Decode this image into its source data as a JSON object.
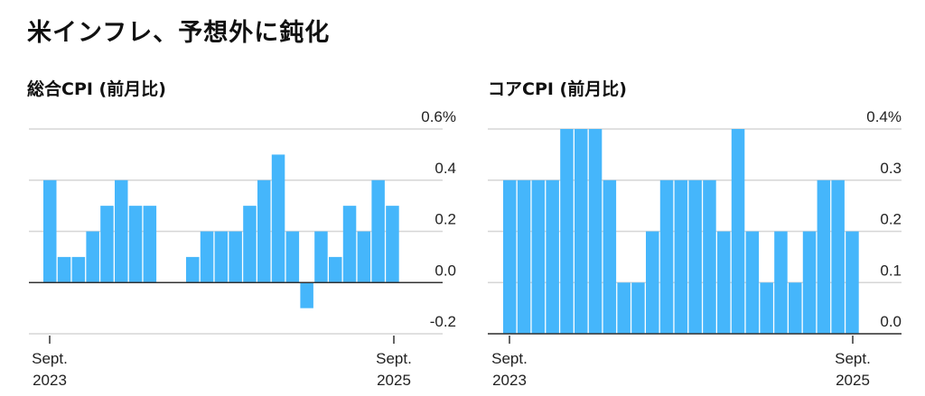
{
  "title": "米インフレ、予想外に鈍化",
  "bar_color": "#45b6fb",
  "chart_data": [
    {
      "type": "bar",
      "title": "総合CPI (前月比)",
      "categories_start": "Sept. 2023",
      "categories_end": "Sept. 2025",
      "x_tick_labels": [
        {
          "line1": "Sept.",
          "line2": "2023"
        },
        {
          "line1": "Sept.",
          "line2": "2025"
        }
      ],
      "values": [
        0.4,
        0.1,
        0.1,
        0.2,
        0.3,
        0.4,
        0.3,
        0.3,
        0.0,
        0.0,
        0.1,
        0.2,
        0.2,
        0.2,
        0.3,
        0.4,
        0.5,
        0.2,
        -0.1,
        0.2,
        0.1,
        0.3,
        0.2,
        0.4,
        0.3
      ],
      "ylim": [
        -0.2,
        0.6
      ],
      "y_ticks": [
        0.6,
        0.4,
        0.2,
        0.0,
        -0.2
      ],
      "y_tick_labels": [
        "0.6%",
        "0.4",
        "0.2",
        "0.0",
        "-0.2"
      ],
      "grid": true,
      "y_axis_side": "right"
    },
    {
      "type": "bar",
      "title": "コアCPI (前月比)",
      "categories_start": "Sept. 2023",
      "categories_end": "Sept. 2025",
      "x_tick_labels": [
        {
          "line1": "Sept.",
          "line2": "2023"
        },
        {
          "line1": "Sept.",
          "line2": "2025"
        }
      ],
      "values": [
        0.3,
        0.3,
        0.3,
        0.3,
        0.4,
        0.4,
        0.4,
        0.3,
        0.1,
        0.1,
        0.2,
        0.3,
        0.3,
        0.3,
        0.3,
        0.2,
        0.4,
        0.2,
        0.1,
        0.2,
        0.1,
        0.2,
        0.3,
        0.3,
        0.2
      ],
      "ylim": [
        0.0,
        0.4
      ],
      "y_ticks": [
        0.4,
        0.3,
        0.2,
        0.1,
        0.0
      ],
      "y_tick_labels": [
        "0.4%",
        "0.3",
        "0.2",
        "0.1",
        "0.0"
      ],
      "grid": true,
      "y_axis_side": "right"
    }
  ]
}
